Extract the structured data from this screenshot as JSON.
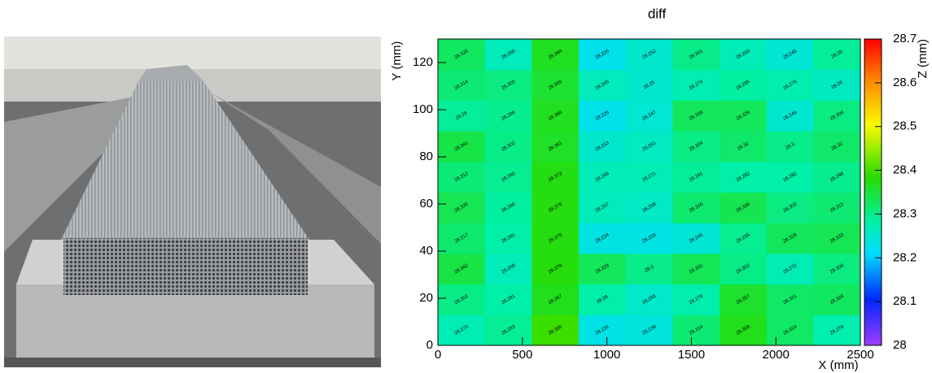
{
  "chart_data": {
    "type": "heatmap",
    "title": "diff",
    "x_label": "X (mm)",
    "y_label": "Y (mm)",
    "z_label": "Z (mm)",
    "xlim": [
      0,
      2500
    ],
    "xticks": [
      0,
      500,
      1000,
      1500,
      2000,
      2500
    ],
    "ylim": [
      0,
      130
    ],
    "yticks": [
      0,
      20,
      40,
      60,
      80,
      100,
      120
    ],
    "zlim": [
      28,
      28.7
    ],
    "zticks": [
      28,
      28.1,
      28.2,
      28.3,
      28.4,
      28.5,
      28.6,
      28.7
    ],
    "values": [
      [
        28.273,
        28.293,
        28.395,
        28.231,
        28.239,
        28.314,
        28.368,
        28.324,
        28.276
      ],
      [
        28.302,
        28.281,
        28.367,
        28.28,
        28.255,
        28.276,
        28.357,
        28.321,
        28.326
      ],
      [
        28.342,
        28.268,
        28.378,
        28.329,
        28.3,
        28.331,
        28.302,
        28.272,
        28.306
      ],
      [
        28.317,
        28.281,
        28.376,
        28.234,
        28.233,
        28.245,
        28.295,
        28.328,
        28.333
      ],
      [
        28.335,
        28.286,
        28.376,
        28.267,
        28.258,
        28.316,
        28.336,
        28.305,
        28.315
      ],
      [
        28.312,
        28.295,
        28.373,
        28.269,
        28.271,
        28.291,
        28.282,
        28.282,
        28.298
      ],
      [
        28.341,
        28.302,
        28.361,
        28.253,
        28.261,
        28.304,
        28.32,
        28.3,
        28.32
      ],
      [
        28.29,
        28.296,
        28.366,
        28.226,
        28.247,
        28.328,
        28.329,
        28.249,
        28.306
      ],
      [
        28.314,
        28.305,
        28.355,
        28.265,
        28.25,
        28.274,
        28.285,
        28.276,
        28.26
      ],
      [
        28.326,
        28.266,
        28.364,
        28.226,
        28.252,
        28.301,
        28.269,
        28.245,
        28.29
      ]
    ]
  }
}
